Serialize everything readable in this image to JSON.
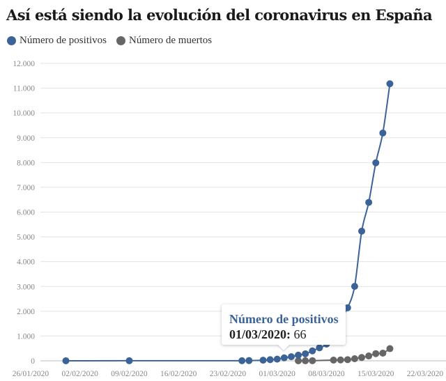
{
  "chart_data": {
    "type": "line",
    "title": "Así está siendo la evolución del coronavirus en España",
    "xlabel": "",
    "ylabel": "",
    "ylim": [
      0,
      12000
    ],
    "yticks": [
      "0",
      "1.000",
      "2.000",
      "3.000",
      "4.000",
      "5.000",
      "6.000",
      "7.000",
      "8.000",
      "9.000",
      "10.000",
      "11.000",
      "12.000"
    ],
    "xlim": [
      "2020-01-26",
      "2020-03-22"
    ],
    "xticks": [
      "26/01/2020",
      "02/02/2020",
      "09/02/2020",
      "16/02/2020",
      "23/02/2020",
      "01/03/2020",
      "08/03/2020",
      "15/03/2020",
      "22/03/2020"
    ],
    "grid": true,
    "legend": "top-left",
    "series": [
      {
        "name": "Número de positivos",
        "color": "#3c6397",
        "points": [
          {
            "x": "2020-01-31",
            "y": 1
          },
          {
            "x": "2020-02-09",
            "y": 2
          },
          {
            "x": "2020-02-25",
            "y": 3
          },
          {
            "x": "2020-02-26",
            "y": 9
          },
          {
            "x": "2020-02-28",
            "y": 25
          },
          {
            "x": "2020-02-29",
            "y": 45
          },
          {
            "x": "2020-03-01",
            "y": 66
          },
          {
            "x": "2020-03-02",
            "y": 120
          },
          {
            "x": "2020-03-03",
            "y": 165
          },
          {
            "x": "2020-03-04",
            "y": 228
          },
          {
            "x": "2020-03-05",
            "y": 282
          },
          {
            "x": "2020-03-06",
            "y": 401
          },
          {
            "x": "2020-03-07",
            "y": 525
          },
          {
            "x": "2020-03-08",
            "y": 674
          },
          {
            "x": "2020-03-09",
            "y": 1231
          },
          {
            "x": "2020-03-10",
            "y": 1695
          },
          {
            "x": "2020-03-11",
            "y": 2140
          },
          {
            "x": "2020-03-12",
            "y": 3004
          },
          {
            "x": "2020-03-13",
            "y": 5232
          },
          {
            "x": "2020-03-14",
            "y": 6391
          },
          {
            "x": "2020-03-15",
            "y": 7988
          },
          {
            "x": "2020-03-16",
            "y": 9191
          },
          {
            "x": "2020-03-17",
            "y": 11178
          }
        ]
      },
      {
        "name": "Número de muertos",
        "color": "#666666",
        "points": [
          {
            "x": "2020-03-04",
            "y": 1
          },
          {
            "x": "2020-03-05",
            "y": 2
          },
          {
            "x": "2020-03-06",
            "y": 5
          },
          {
            "x": "2020-03-09",
            "y": 28
          },
          {
            "x": "2020-03-10",
            "y": 35
          },
          {
            "x": "2020-03-11",
            "y": 47
          },
          {
            "x": "2020-03-12",
            "y": 84
          },
          {
            "x": "2020-03-13",
            "y": 133
          },
          {
            "x": "2020-03-14",
            "y": 195
          },
          {
            "x": "2020-03-15",
            "y": 289
          },
          {
            "x": "2020-03-16",
            "y": 309
          },
          {
            "x": "2020-03-17",
            "y": 491
          }
        ]
      }
    ],
    "tooltip": {
      "series": "Número de positivos",
      "date": "01/03/2020:",
      "value": "66"
    }
  }
}
